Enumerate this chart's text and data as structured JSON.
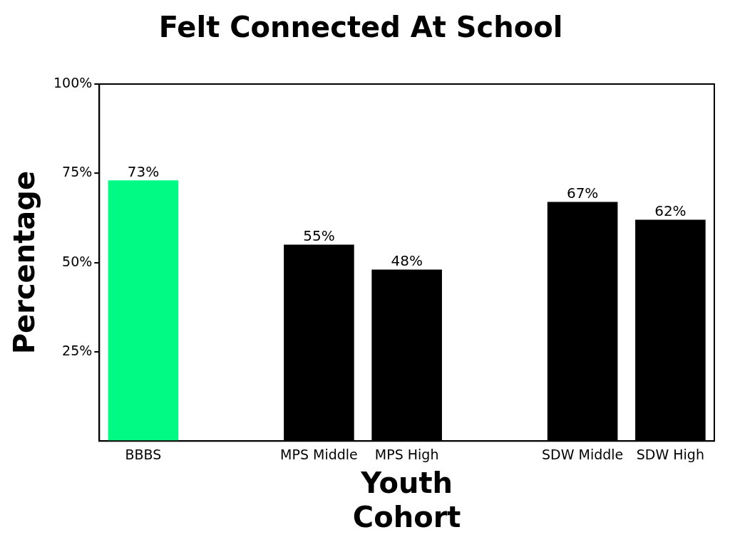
{
  "chart_data": {
    "type": "bar",
    "title": "Felt Connected At School",
    "xlabel": "Youth Cohort",
    "ylabel": "Percentage",
    "categories": [
      "BBBS",
      null,
      "MPS Middle",
      "MPS High",
      null,
      "SDW Middle",
      "SDW High"
    ],
    "values": [
      73,
      null,
      55,
      48,
      null,
      67,
      62
    ],
    "colors": [
      "#00fa84",
      null,
      "#000000",
      "#000000",
      null,
      "#000000",
      "#000000"
    ],
    "value_labels": [
      "73%",
      null,
      "55%",
      "48%",
      null,
      "67%",
      "62%"
    ],
    "ylim": [
      0,
      100
    ],
    "yticks": [
      {
        "value": 25,
        "label": "25%"
      },
      {
        "value": 50,
        "label": "50%"
      },
      {
        "value": 75,
        "label": "75%"
      },
      {
        "value": 100,
        "label": "100%"
      }
    ],
    "grid": false,
    "legend": false
  }
}
